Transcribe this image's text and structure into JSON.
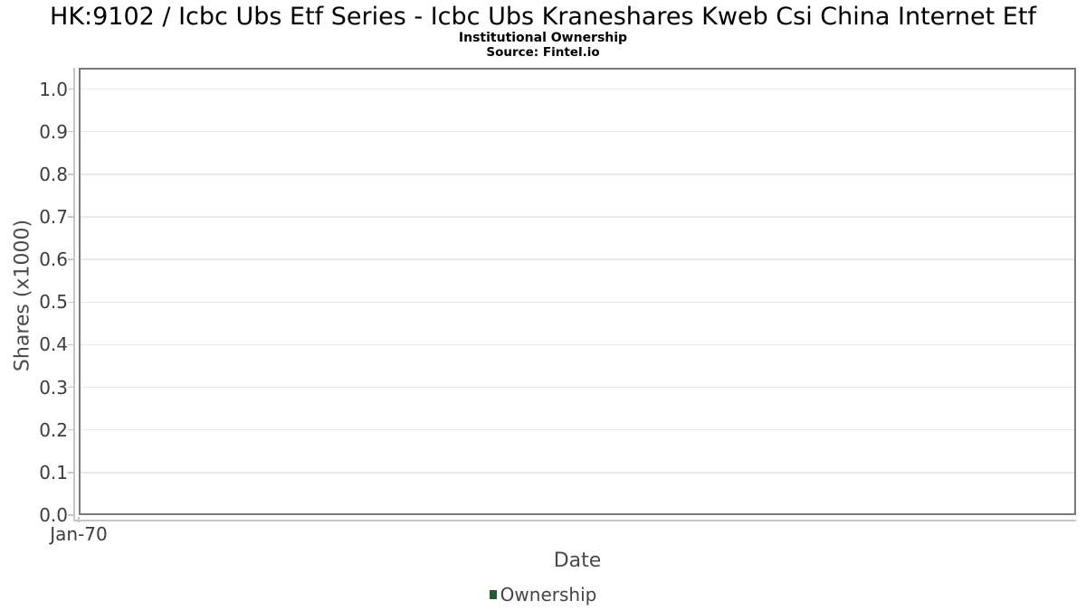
{
  "header": {
    "title": "HK:9102 / Icbc Ubs Etf Series - Icbc Ubs Kraneshares Kweb Csi China Internet Etf",
    "subtitle": "Institutional Ownership",
    "source": "Source: Fintel.io"
  },
  "chart_data": {
    "type": "bar",
    "title": "HK:9102 / Icbc Ubs Etf Series - Icbc Ubs Kraneshares Kweb Csi China Internet Etf",
    "subtitle": "Institutional Ownership",
    "source": "Source: Fintel.io",
    "xlabel": "Date",
    "ylabel": "Shares (x1000)",
    "ylim": [
      0,
      1.05
    ],
    "yticks": [
      0.0,
      0.1,
      0.2,
      0.3,
      0.4,
      0.5,
      0.6,
      0.7,
      0.8,
      0.9,
      1.0
    ],
    "ytick_labels": [
      "0.0",
      "0.1",
      "0.2",
      "0.3",
      "0.4",
      "0.5",
      "0.6",
      "0.7",
      "0.8",
      "0.9",
      "1.0"
    ],
    "xtick_labels": [
      "Jan-70"
    ],
    "grid": "horizontal-only",
    "legend_position": "bottom-center",
    "series": [
      {
        "name": "Ownership",
        "color": "#235c30",
        "values": []
      }
    ]
  },
  "colors": {
    "background": "#ffffff",
    "plot_border": "#7a7a7a",
    "gridline": "#e9e9e9",
    "axis_line": "#c6c6c6",
    "tick_text": "#3d3d3d",
    "axis_title_text": "#4a4a4a",
    "title_text": "#000000",
    "legend_marker": "#235c30"
  }
}
